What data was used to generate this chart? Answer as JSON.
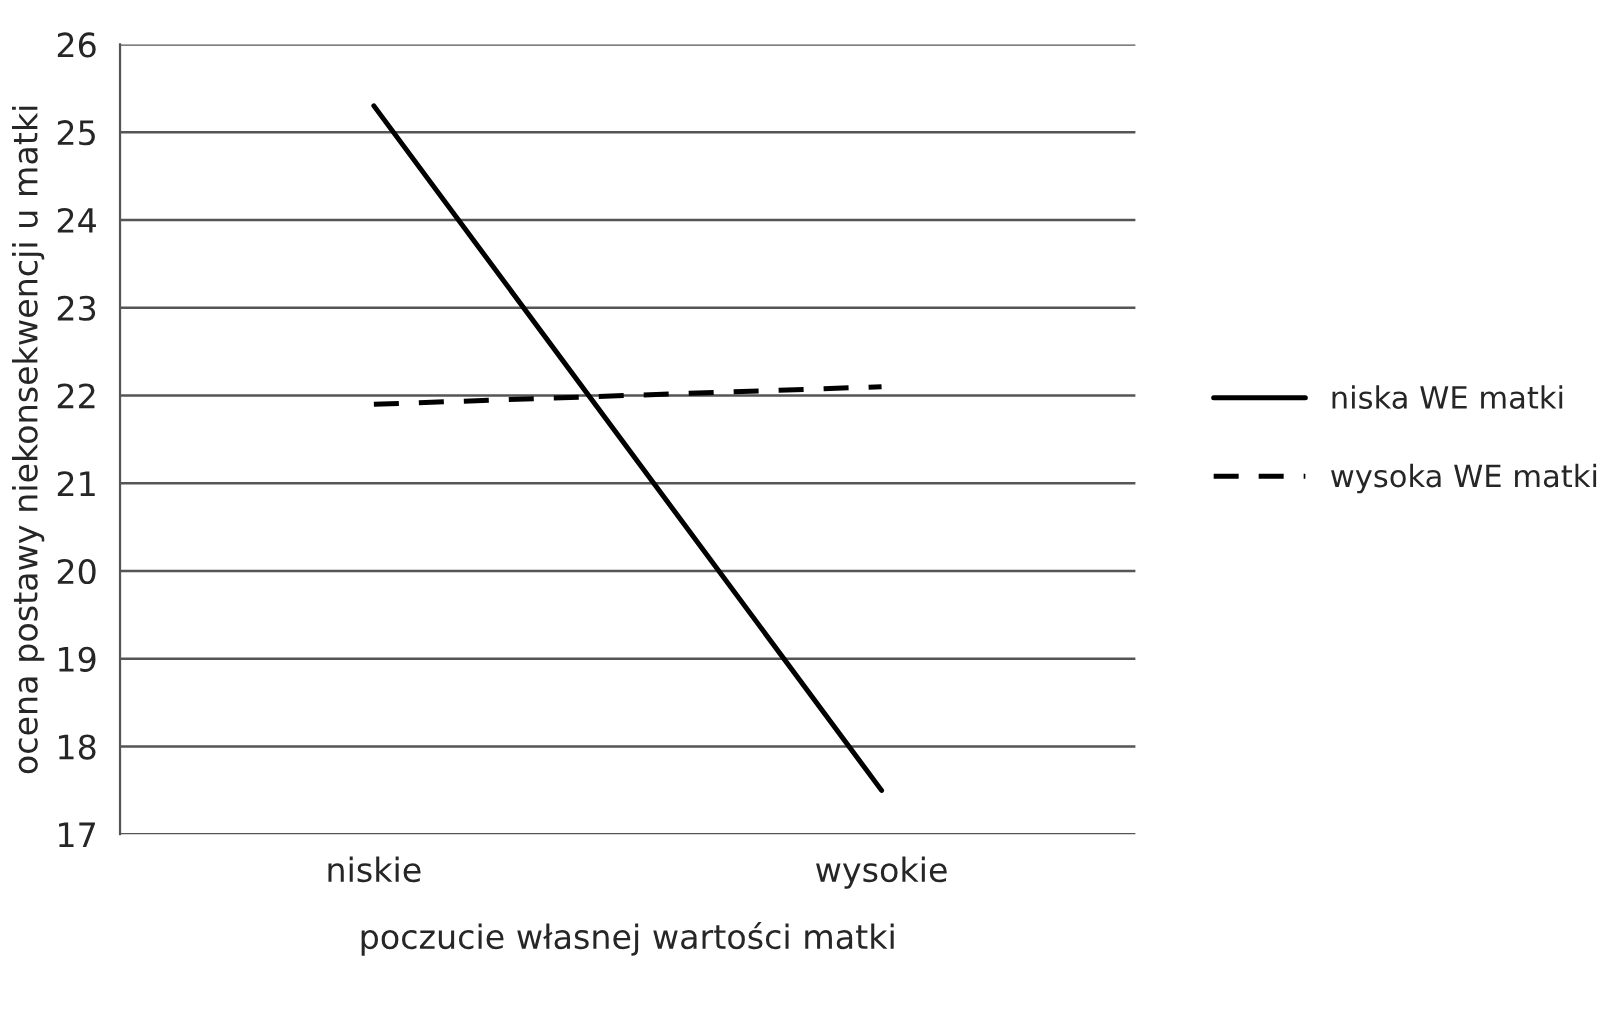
{
  "chart_data": {
    "type": "line",
    "xlabel": "poczucie własnej wartości matki",
    "ylabel": "ocena postawy niekonsekwencji u matki",
    "categories": [
      "niskie",
      "wysokie"
    ],
    "series": [
      {
        "name": "niska WE matki",
        "color": "#000000",
        "line_style": "solid",
        "values": [
          25.3,
          17.5
        ]
      },
      {
        "name": "wysoka WE matki",
        "color": "#000000",
        "line_style": "dashed",
        "values": [
          21.9,
          22.1
        ]
      }
    ],
    "ylim": [
      17,
      26
    ],
    "yticks": [
      17,
      18,
      19,
      20,
      21,
      22,
      23,
      24,
      25,
      26
    ],
    "grid": "y",
    "legend": "right",
    "marker": "none"
  }
}
